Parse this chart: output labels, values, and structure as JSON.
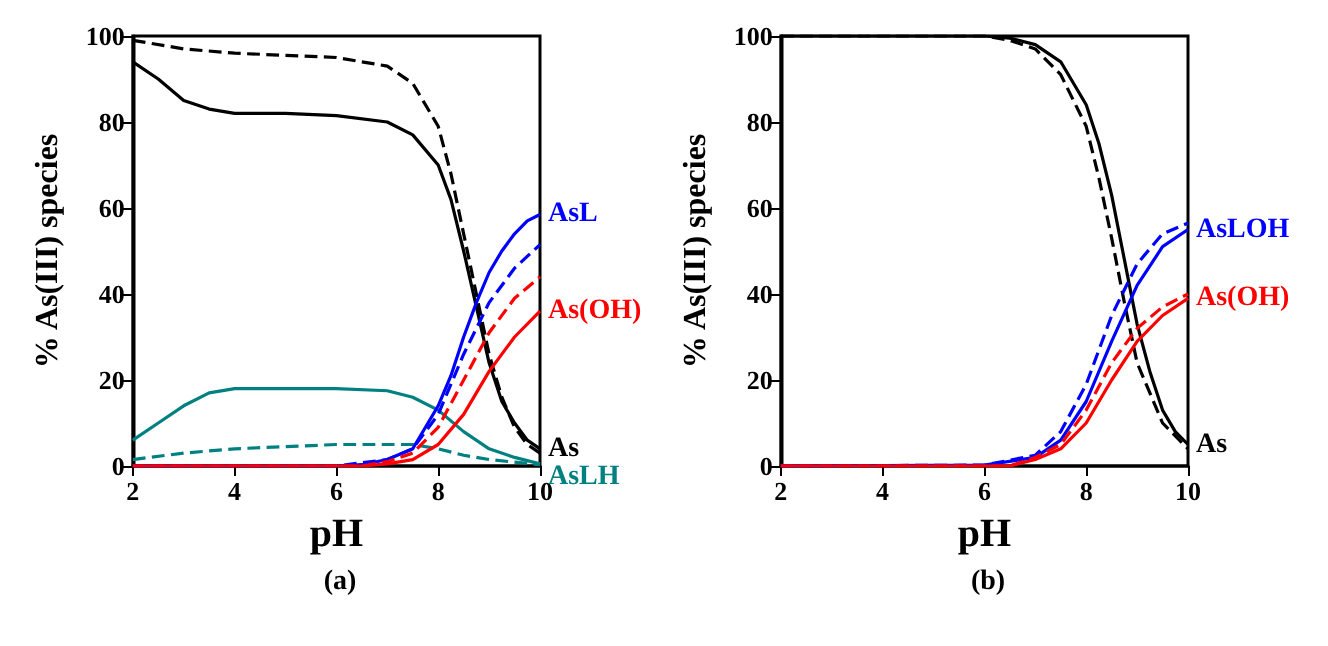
{
  "chart_data": [
    {
      "type": "line",
      "title": "(a)",
      "xlabel": "pH",
      "ylabel": "% As(III) species",
      "xlim": [
        2,
        10
      ],
      "ylim": [
        0,
        100
      ],
      "xticks": [
        2,
        4,
        6,
        8,
        10
      ],
      "yticks": [
        0,
        20,
        40,
        60,
        80,
        100
      ],
      "grid": false,
      "marker": "none",
      "series": [
        {
          "name": "As",
          "color": "#000000",
          "line_style": "solid",
          "x": [
            2,
            2.5,
            3,
            3.5,
            4,
            5,
            6,
            7,
            7.5,
            8,
            8.25,
            8.5,
            8.75,
            9,
            9.25,
            9.5,
            9.75,
            10
          ],
          "values": [
            94,
            90,
            85,
            83,
            82,
            82,
            81.5,
            80,
            77,
            70,
            62,
            50,
            37,
            24,
            15,
            10,
            6,
            4
          ]
        },
        {
          "color": "#000000",
          "line_style": "dashed",
          "x": [
            2,
            3,
            4,
            5,
            6,
            7,
            7.5,
            8,
            8.25,
            8.5,
            8.75,
            9,
            9.25,
            9.5,
            9.75,
            10
          ],
          "values": [
            99,
            97,
            96,
            95.5,
            95,
            93,
            89,
            79,
            68,
            54,
            40,
            26,
            16,
            9,
            5,
            3
          ]
        },
        {
          "name": "AsLH",
          "color": "#008080",
          "line_style": "solid",
          "x": [
            2,
            2.5,
            3,
            3.5,
            4,
            5,
            6,
            7,
            7.5,
            8,
            8.5,
            9,
            9.5,
            10
          ],
          "values": [
            6,
            10,
            14,
            17,
            18,
            18,
            18,
            17.5,
            16,
            13,
            8,
            4,
            2,
            0.5
          ]
        },
        {
          "color": "#008080",
          "line_style": "dashed",
          "x": [
            2,
            3,
            4,
            5,
            6,
            7,
            7.5,
            8,
            8.5,
            9,
            10
          ],
          "values": [
            1.5,
            3,
            4,
            4.5,
            5,
            5,
            5,
            4,
            2.5,
            1.5,
            0.3
          ]
        },
        {
          "name": "AsL",
          "color": "#0000ff",
          "line_style": "solid",
          "x": [
            2,
            6,
            6.5,
            7,
            7.5,
            8,
            8.25,
            8.5,
            8.75,
            9,
            9.25,
            9.5,
            9.75,
            10
          ],
          "values": [
            0,
            0,
            0.3,
            1.5,
            4,
            14,
            21,
            30,
            38,
            45,
            50,
            54,
            57,
            58.5
          ]
        },
        {
          "color": "#0000ff",
          "line_style": "dashed",
          "x": [
            2,
            6,
            7,
            7.5,
            8,
            8.5,
            9,
            9.5,
            10
          ],
          "values": [
            0,
            0,
            1.5,
            4,
            12,
            26,
            38,
            46,
            51.5
          ]
        },
        {
          "name": "As(OH)",
          "color": "#ff0000",
          "line_style": "solid",
          "x": [
            2,
            6.5,
            7,
            7.5,
            8,
            8.5,
            9,
            9.5,
            10
          ],
          "values": [
            0,
            0,
            0.5,
            1.5,
            5,
            12,
            22,
            30,
            36
          ]
        },
        {
          "color": "#ff0000",
          "line_style": "dashed",
          "x": [
            2,
            6.5,
            7,
            7.5,
            8,
            8.5,
            9,
            9.5,
            10
          ],
          "values": [
            0,
            0,
            1,
            3,
            9,
            20,
            31,
            39,
            44
          ]
        }
      ]
    },
    {
      "type": "line",
      "title": "(b)",
      "xlabel": "pH",
      "ylabel": "% As(III) species",
      "xlim": [
        2,
        10
      ],
      "ylim": [
        0,
        100
      ],
      "xticks": [
        2,
        4,
        6,
        8,
        10
      ],
      "yticks": [
        0,
        20,
        40,
        60,
        80,
        100
      ],
      "grid": false,
      "marker": "none",
      "series": [
        {
          "name": "As",
          "color": "#000000",
          "line_style": "solid",
          "x": [
            2,
            6,
            6.5,
            7,
            7.5,
            8,
            8.25,
            8.5,
            8.75,
            9,
            9.25,
            9.5,
            9.75,
            10
          ],
          "values": [
            100,
            100,
            99.5,
            98,
            94,
            84,
            75,
            63,
            48,
            33,
            22,
            13,
            8,
            5
          ]
        },
        {
          "color": "#000000",
          "line_style": "dashed",
          "x": [
            2,
            6,
            6.5,
            7,
            7.5,
            8,
            8.25,
            8.5,
            8.75,
            9,
            9.5,
            10
          ],
          "values": [
            100,
            100,
            99,
            97,
            91,
            79,
            67,
            53,
            38,
            24,
            10,
            4
          ]
        },
        {
          "name": "AsLOH",
          "color": "#0000ff",
          "line_style": "solid",
          "x": [
            2,
            6,
            7,
            7.5,
            8,
            8.5,
            9,
            9.5,
            10
          ],
          "values": [
            0,
            0.2,
            2,
            6,
            15,
            29,
            42,
            51,
            55
          ]
        },
        {
          "color": "#0000ff",
          "line_style": "dashed",
          "x": [
            2,
            6,
            7,
            7.5,
            8,
            8.5,
            9,
            9.5,
            10
          ],
          "values": [
            0,
            0.2,
            2.5,
            8,
            19,
            35,
            47,
            54,
            56.5
          ]
        },
        {
          "name": "As(OH)",
          "color": "#ff0000",
          "line_style": "solid",
          "x": [
            2,
            6.5,
            7,
            7.5,
            8,
            8.5,
            9,
            9.5,
            10
          ],
          "values": [
            0,
            0,
            1.5,
            4,
            10,
            20,
            29,
            35,
            39
          ]
        },
        {
          "color": "#ff0000",
          "line_style": "dashed",
          "x": [
            2,
            6.5,
            7,
            7.5,
            8,
            8.5,
            9,
            9.5,
            10
          ],
          "values": [
            0,
            0,
            2,
            5,
            13,
            24,
            32,
            37,
            40
          ]
        }
      ]
    }
  ]
}
